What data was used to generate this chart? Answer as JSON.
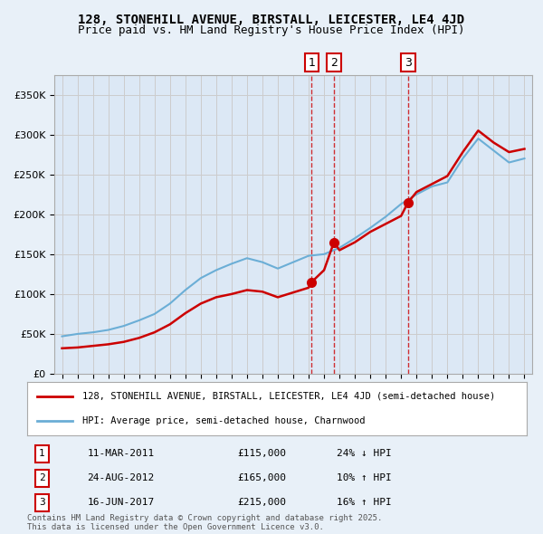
{
  "title": "128, STONEHILL AVENUE, BIRSTALL, LEICESTER, LE4 4JD",
  "subtitle": "Price paid vs. HM Land Registry's House Price Index (HPI)",
  "background_color": "#e8f0f8",
  "plot_bg_color": "#dce8f5",
  "legend_line1": "128, STONEHILL AVENUE, BIRSTALL, LEICESTER, LE4 4JD (semi-detached house)",
  "legend_line2": "HPI: Average price, semi-detached house, Charnwood",
  "footer": "Contains HM Land Registry data © Crown copyright and database right 2025.\nThis data is licensed under the Open Government Licence v3.0.",
  "transactions": [
    {
      "id": 1,
      "date": "11-MAR-2011",
      "price": 115000,
      "pct": "24% ↓ HPI",
      "year": 2011.19
    },
    {
      "id": 2,
      "date": "24-AUG-2012",
      "price": 165000,
      "pct": "10% ↑ HPI",
      "year": 2012.64
    },
    {
      "id": 3,
      "date": "16-JUN-2017",
      "price": 215000,
      "pct": "16% ↑ HPI",
      "year": 2017.45
    }
  ],
  "hpi_years": [
    1995,
    1996,
    1997,
    1998,
    1999,
    2000,
    2001,
    2002,
    2003,
    2004,
    2005,
    2006,
    2007,
    2008,
    2009,
    2010,
    2011,
    2012,
    2013,
    2014,
    2015,
    2016,
    2017,
    2018,
    2019,
    2020,
    2021,
    2022,
    2023,
    2024,
    2025
  ],
  "hpi_values": [
    47000,
    50000,
    52000,
    55000,
    60000,
    67000,
    75000,
    88000,
    105000,
    120000,
    130000,
    138000,
    145000,
    140000,
    132000,
    140000,
    148000,
    150000,
    158000,
    170000,
    183000,
    197000,
    213000,
    225000,
    235000,
    240000,
    270000,
    295000,
    280000,
    265000,
    270000
  ],
  "property_years": [
    1995,
    1996,
    1997,
    1998,
    1999,
    2000,
    2001,
    2002,
    2003,
    2004,
    2005,
    2006,
    2007,
    2008,
    2009,
    2010,
    2011.0,
    2011.19,
    2012.0,
    2012.64,
    2013,
    2014,
    2015,
    2016,
    2017.0,
    2017.45,
    2018,
    2019,
    2020,
    2021,
    2022,
    2023,
    2024,
    2025
  ],
  "property_values": [
    32000,
    33000,
    35000,
    37000,
    40000,
    45000,
    52000,
    62000,
    76000,
    88000,
    96000,
    100000,
    105000,
    103000,
    96000,
    102000,
    108000,
    115000,
    130000,
    165000,
    155000,
    165000,
    178000,
    188000,
    198000,
    215000,
    228000,
    238000,
    248000,
    278000,
    305000,
    290000,
    278000,
    282000
  ],
  "ylim": [
    0,
    375000
  ],
  "yticks": [
    0,
    50000,
    100000,
    150000,
    200000,
    250000,
    300000,
    350000
  ],
  "ytick_labels": [
    "£0",
    "£50K",
    "£100K",
    "£150K",
    "£200K",
    "£250K",
    "£300K",
    "£350K"
  ],
  "xlim_start": 1994.5,
  "xlim_end": 2025.5,
  "xticks": [
    1995,
    1996,
    1997,
    1998,
    1999,
    2000,
    2001,
    2002,
    2003,
    2004,
    2005,
    2006,
    2007,
    2008,
    2009,
    2010,
    2011,
    2012,
    2013,
    2014,
    2015,
    2016,
    2017,
    2018,
    2019,
    2020,
    2021,
    2022,
    2023,
    2024,
    2025
  ],
  "hpi_color": "#6baed6",
  "property_color": "#cc0000",
  "vline_color": "#cc0000",
  "marker_color": "#cc0000",
  "box_edge_color": "#cc0000",
  "grid_color": "#cccccc"
}
